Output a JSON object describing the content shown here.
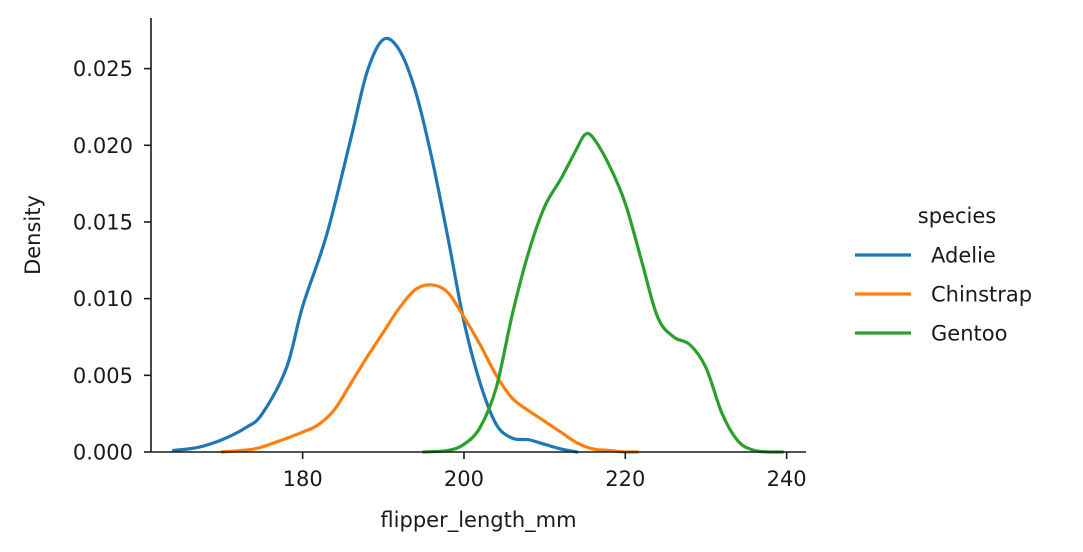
{
  "chart_data": {
    "type": "line",
    "title": "",
    "xlabel": "flipper_length_mm",
    "ylabel": "Density",
    "xlim": [
      161.2,
      242.4
    ],
    "ylim": [
      0.0,
      0.0283
    ],
    "xticks": [
      180,
      200,
      220,
      240
    ],
    "xtick_labels": [
      "180",
      "200",
      "220",
      "240"
    ],
    "yticks": [
      0.0,
      0.005,
      0.01,
      0.015,
      0.02,
      0.025
    ],
    "ytick_labels": [
      "0.000",
      "0.005",
      "0.010",
      "0.015",
      "0.020",
      "0.025"
    ],
    "grid": false,
    "legend": {
      "title": "species",
      "placement": "outside-right"
    },
    "series": [
      {
        "name": "Adelie",
        "color": "#1f77b4",
        "x": [
          164,
          167,
          170,
          173,
          175,
          178,
          180,
          183,
          186,
          188,
          190,
          192,
          194,
          196,
          198,
          200,
          202,
          204,
          206,
          208,
          210,
          212,
          214
        ],
        "y": [
          0.0001,
          0.0003,
          0.0008,
          0.0016,
          0.0025,
          0.0055,
          0.0095,
          0.0142,
          0.0205,
          0.0248,
          0.0269,
          0.0262,
          0.0235,
          0.0192,
          0.014,
          0.0085,
          0.0045,
          0.0018,
          0.0009,
          0.0008,
          0.0005,
          0.0002,
          0.0
        ]
      },
      {
        "name": "Chinstrap",
        "color": "#ff7f0e",
        "x": [
          170,
          174,
          177,
          180,
          182,
          184,
          186,
          188,
          190,
          192,
          194,
          196,
          198,
          200,
          202,
          204,
          206,
          208,
          210,
          212,
          214,
          216,
          218,
          220,
          221.5
        ],
        "y": [
          0.0,
          0.0002,
          0.0007,
          0.0013,
          0.0018,
          0.0028,
          0.0045,
          0.0062,
          0.0078,
          0.0094,
          0.0106,
          0.0109,
          0.0104,
          0.0088,
          0.007,
          0.005,
          0.0035,
          0.0027,
          0.002,
          0.0013,
          0.0006,
          0.0002,
          0.0001,
          0.0,
          0.0
        ]
      },
      {
        "name": "Gentoo",
        "color": "#2ca02c",
        "x": [
          195,
          198,
          200,
          202,
          204,
          206,
          208,
          210,
          212,
          214,
          215,
          216,
          218,
          220,
          222,
          224,
          226,
          228,
          230,
          232,
          234,
          236,
          238,
          239.5
        ],
        "y": [
          0.0,
          0.0001,
          0.0005,
          0.0016,
          0.0042,
          0.009,
          0.013,
          0.016,
          0.0178,
          0.0198,
          0.0207,
          0.0205,
          0.0187,
          0.0162,
          0.0125,
          0.0088,
          0.0075,
          0.007,
          0.0055,
          0.0025,
          0.0007,
          0.0001,
          0.0,
          0.0
        ]
      }
    ]
  }
}
